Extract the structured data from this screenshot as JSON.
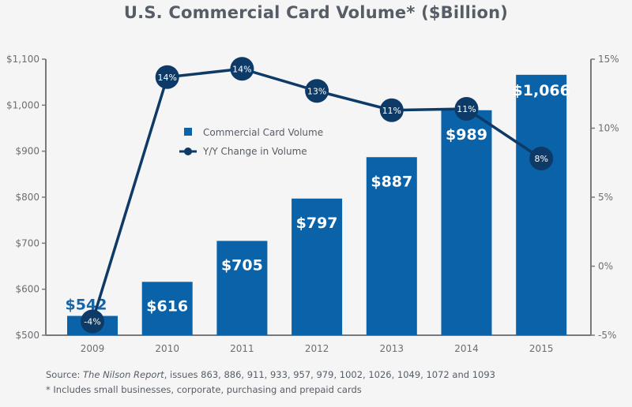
{
  "chart_data": {
    "type": "bar",
    "title": "U.S. Commercial Card Volume* ($Billion)",
    "categories": [
      "2009",
      "2010",
      "2011",
      "2012",
      "2013",
      "2014",
      "2015"
    ],
    "series": [
      {
        "name": "Commercial Card Volume",
        "type": "bar",
        "axis": "left",
        "values": [
          542,
          616,
          705,
          797,
          887,
          989,
          1066
        ],
        "labels": [
          "$542",
          "$616",
          "$705",
          "$797",
          "$887",
          "$989",
          "$1,066"
        ],
        "color": "#0a62a9"
      },
      {
        "name": "Y/Y Change in Volume",
        "type": "line",
        "axis": "right",
        "values": [
          -4.0,
          13.7,
          14.3,
          12.7,
          11.3,
          11.4,
          7.8
        ],
        "labels": [
          "-4%",
          "14%",
          "14%",
          "13%",
          "11%",
          "11%",
          "8%"
        ],
        "color": "#0d3a66"
      }
    ],
    "y_left": {
      "ylim": [
        500,
        1100
      ],
      "ticks": [
        500,
        600,
        700,
        800,
        900,
        1000,
        1100
      ],
      "tick_labels": [
        "$500",
        "$600",
        "$700",
        "$800",
        "$900",
        "$1,000",
        "$1,100"
      ]
    },
    "y_right": {
      "ylim": [
        -5,
        15
      ],
      "ticks": [
        -5,
        0,
        5,
        10,
        15
      ],
      "tick_labels": [
        "-5%",
        "0%",
        "5%",
        "10%",
        "15%"
      ]
    },
    "xlabel": "",
    "grid": false,
    "legend": {
      "position": "upper-center",
      "entries": [
        "Commercial Card Volume",
        "Y/Y Change in Volume"
      ]
    }
  },
  "footnotes": {
    "source_prefix": "Source: ",
    "source_title": "The Nilson Report",
    "source_suffix": ", issues 863, 886, 911, 933, 957, 979, 1002, 1026, 1049, 1072 and 1093",
    "asterisk_note": "* Includes small businesses, corporate, purchasing and prepaid cards"
  },
  "colors": {
    "bar": "#0a62a9",
    "line": "#0d3a66",
    "axis": "#77797c",
    "text": "#575d66",
    "background": "#f5f5f5"
  }
}
